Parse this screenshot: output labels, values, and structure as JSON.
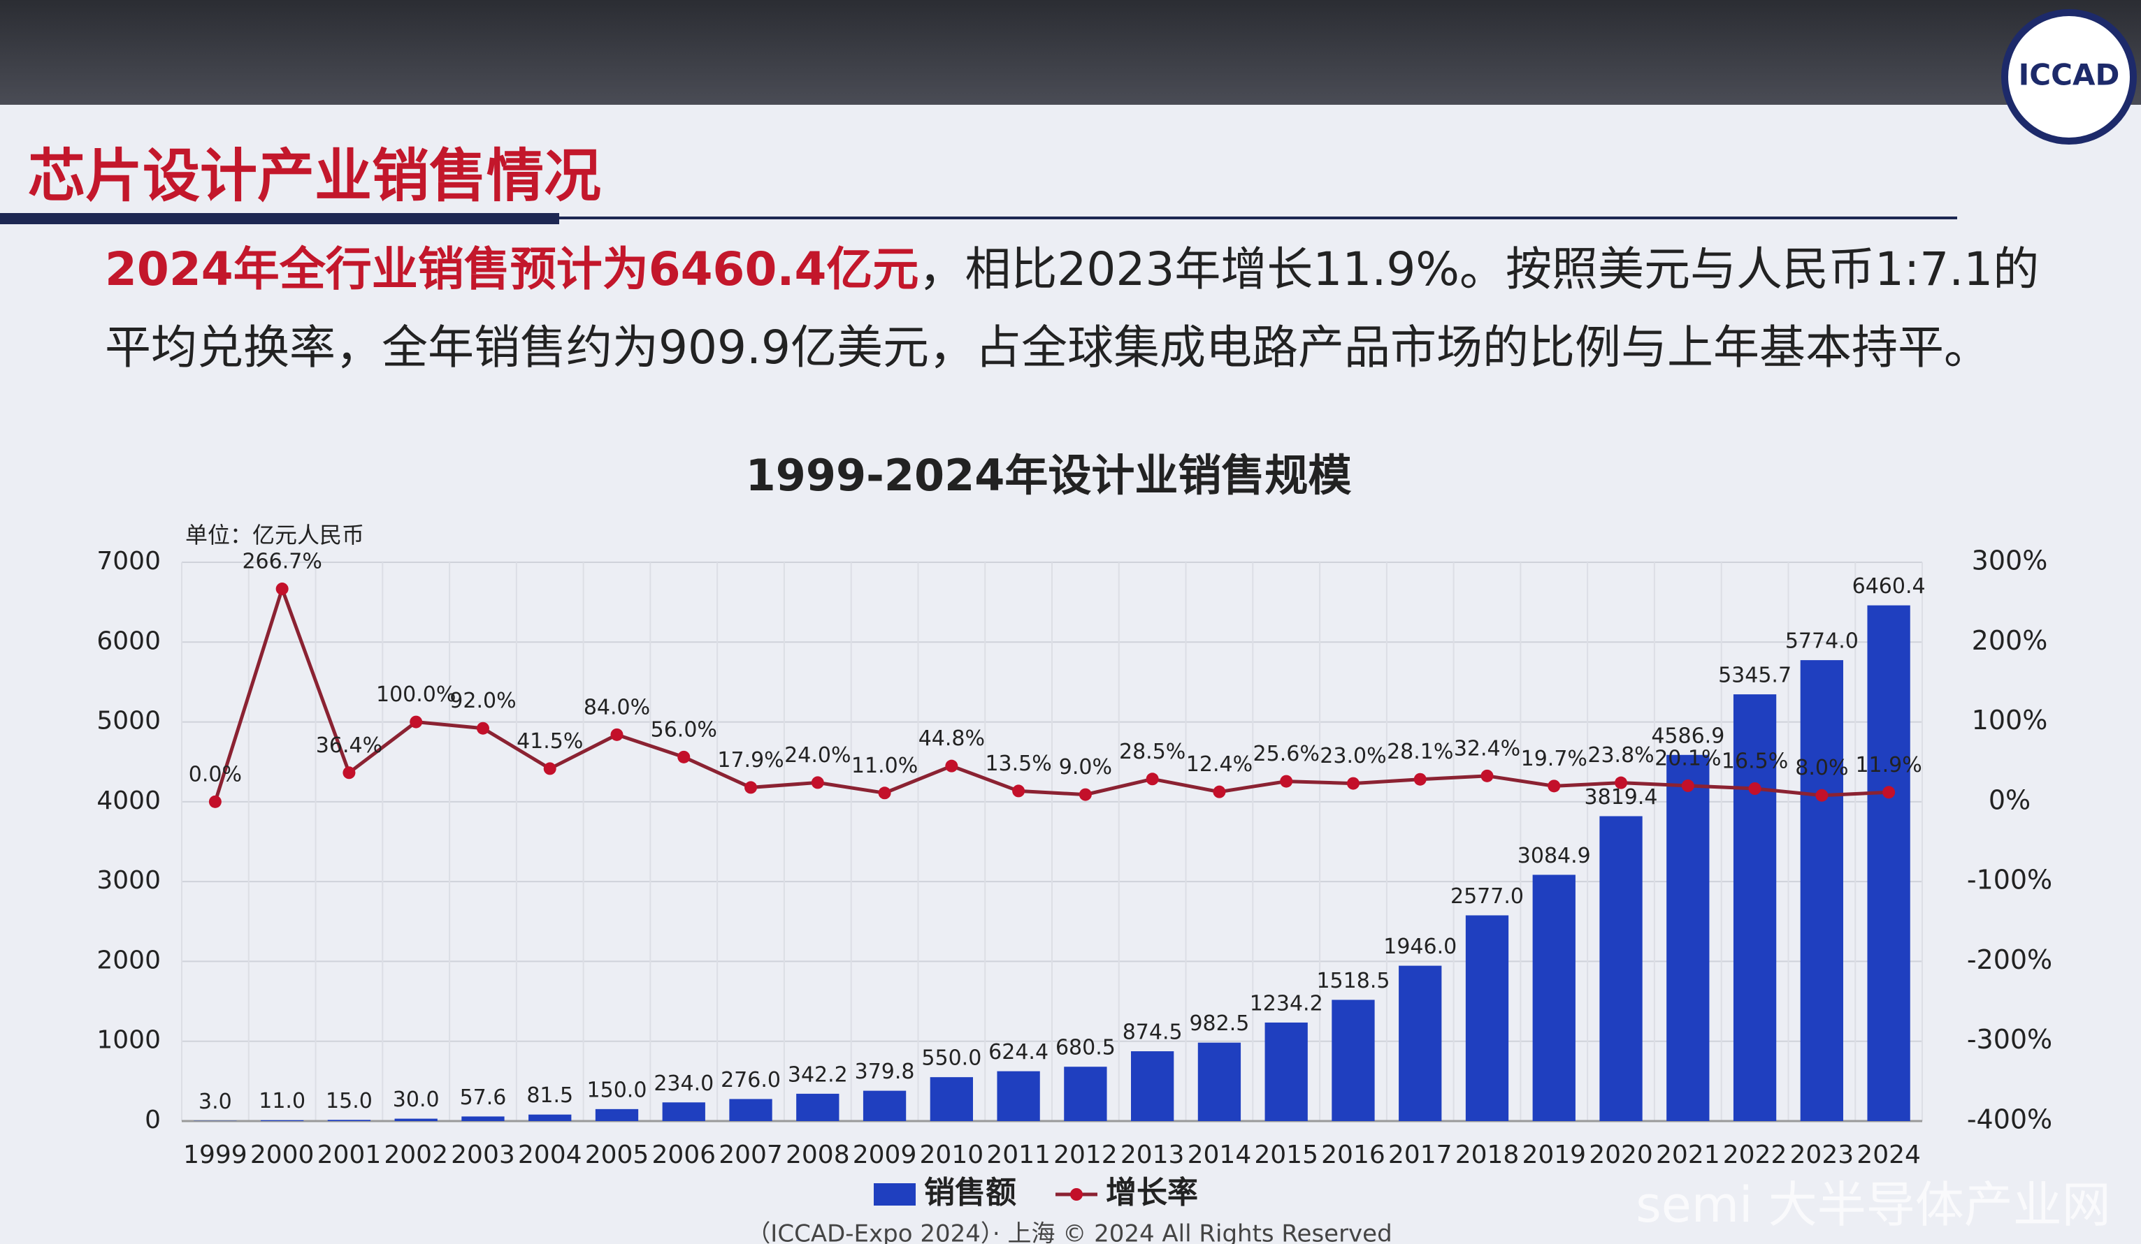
{
  "slide": {
    "title": "芯片设计产业销售情况",
    "text_highlight": "2024年全行业销售预计为6460.4亿元",
    "text_rest": "，相比2023年增长11.9%。按照美元与人民币1:7.1的平均兑换率，全年销售约为909.9亿美元，占全球集成电路产品市场的比例与上年基本持平。",
    "logo": "ICCAD",
    "footer": "（ICCAD-Expo 2024）· 上海 © 2024 All Rights Reserved",
    "watermark": "semi 大半导体产业网"
  },
  "chart_data": {
    "type": "bar",
    "title": "1999-2024年设计业销售规模",
    "y_label": "单位：亿元人民币",
    "categories": [
      "1999",
      "2000",
      "2001",
      "2002",
      "2003",
      "2004",
      "2005",
      "2006",
      "2007",
      "2008",
      "2009",
      "2010",
      "2011",
      "2012",
      "2013",
      "2014",
      "2015",
      "2016",
      "2017",
      "2018",
      "2019",
      "2020",
      "2021",
      "2022",
      "2023",
      "2024"
    ],
    "series": [
      {
        "name": "销售额",
        "type": "bar",
        "color": "#1f3fbf",
        "values": [
          3.0,
          11.0,
          15.0,
          30.0,
          57.6,
          81.5,
          150.0,
          234.0,
          276.0,
          342.2,
          379.8,
          550.0,
          624.4,
          680.5,
          874.5,
          982.5,
          1234.2,
          1518.5,
          1946.0,
          2577.0,
          3084.9,
          3819.4,
          4586.9,
          5345.7,
          5774.0,
          6460.4
        ],
        "value_labels": [
          "3.0",
          "11.0",
          "15.0",
          "30.0",
          "57.6",
          "81.5",
          "150.0",
          "234.0",
          "276.0",
          "342.2",
          "379.8",
          "550.0",
          "624.4",
          "680.5",
          "874.5",
          "982.5",
          "1234.2",
          "1518.5",
          "1946.0",
          "2577.0",
          "3084.9",
          "3819.4",
          "4586.9",
          "5345.7",
          "5774.0",
          "6460.4"
        ]
      },
      {
        "name": "增长率",
        "type": "line",
        "axis": "y2",
        "color": "#8b2232",
        "values": [
          0.0,
          266.7,
          36.4,
          100.0,
          92.0,
          41.5,
          84.0,
          56.0,
          17.9,
          24.0,
          11.0,
          44.8,
          13.5,
          9.0,
          28.5,
          12.4,
          25.6,
          23.0,
          28.1,
          32.4,
          19.7,
          23.8,
          20.1,
          16.5,
          8.0,
          11.9
        ],
        "value_labels": [
          "0.0%",
          "266.7%",
          "36.4%",
          "100.0%",
          "92.0%",
          "41.5%",
          "84.0%",
          "56.0%",
          "17.9%",
          "24.0%",
          "11.0%",
          "44.8%",
          "13.5%",
          "9.0%",
          "28.5%",
          "12.4%",
          "25.6%",
          "23.0%",
          "28.1%",
          "32.4%",
          "19.7%",
          "23.8%",
          "20.1%",
          "16.5%",
          "8.0%",
          "11.9%"
        ]
      }
    ],
    "ylim": [
      0,
      7000
    ],
    "yticks": [
      0,
      1000,
      2000,
      3000,
      4000,
      5000,
      6000,
      7000
    ],
    "y2lim": [
      -400,
      300
    ],
    "y2ticks": [
      {
        "value": -400,
        "label": "-400%"
      },
      {
        "value": -300,
        "label": "-300%"
      },
      {
        "value": -200,
        "label": "-200%"
      },
      {
        "value": -100,
        "label": "-100%"
      },
      {
        "value": 0,
        "label": "0%"
      },
      {
        "value": 100,
        "label": "100%"
      },
      {
        "value": 200,
        "label": "200%"
      },
      {
        "value": 300,
        "label": "300%"
      }
    ],
    "grid": true,
    "legend": "bottom"
  }
}
